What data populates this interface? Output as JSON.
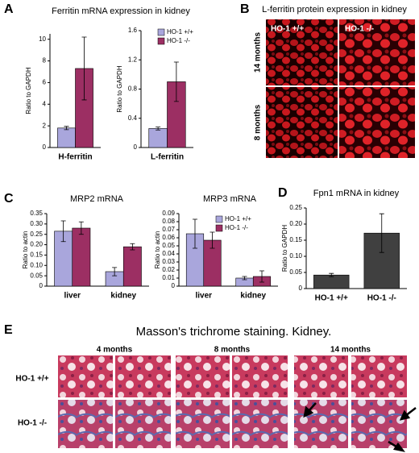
{
  "panel_labels": [
    "A",
    "B",
    "C",
    "D",
    "E"
  ],
  "chart_data": [
    {
      "type": "bar",
      "title": "Ferritin mRNA expression in kidney",
      "ylabel": "Ratio to GAPDH",
      "categories": [
        "H-ferritin"
      ],
      "ylim": [
        0,
        10.5
      ],
      "yticks": [
        0,
        2,
        4,
        6,
        8,
        10
      ],
      "series": [
        {
          "color": "#a9a6dc",
          "values": [
            1.8
          ],
          "errors": [
            0.15
          ]
        },
        {
          "color": "#9c2f63",
          "values": [
            7.3
          ],
          "errors": [
            2.9
          ]
        }
      ]
    },
    {
      "type": "bar",
      "ylabel": "Ratio to GAPDH",
      "categories": [
        "L-ferritin"
      ],
      "ylim": [
        0,
        1.6
      ],
      "yticks": [
        0,
        0.4,
        0.8,
        1.2,
        1.6
      ],
      "series": [
        {
          "name": "HO-1 +/+",
          "color": "#a9a6dc",
          "values": [
            0.26
          ],
          "errors": [
            0.02
          ]
        },
        {
          "name": "HO-1 -/-",
          "color": "#9c2f63",
          "values": [
            0.9
          ],
          "errors": [
            0.27
          ]
        }
      ]
    },
    {
      "type": "bar",
      "title": "MRP2 mRNA",
      "ylabel": "Ratio to actin",
      "categories": [
        "liver",
        "kidney"
      ],
      "ylim": [
        0,
        0.35
      ],
      "yticks": [
        0,
        0.05,
        {
          "value": 0.1,
          "label": "0.10"
        },
        0.15,
        {
          "value": 0.2,
          "label": "0.20"
        },
        0.25,
        {
          "value": 0.3,
          "label": "0.30"
        },
        0.35
      ],
      "series": [
        {
          "color": "#a9a6dc",
          "values": [
            0.265,
            0.07
          ],
          "errors": [
            0.05,
            0.02
          ]
        },
        {
          "color": "#9c2f63",
          "values": [
            0.28,
            0.19
          ],
          "errors": [
            0.03,
            0.015
          ]
        }
      ]
    },
    {
      "type": "bar",
      "title": "MRP3 mRNA",
      "ylabel": "Ratio to actin",
      "categories": [
        "liver",
        "kidney"
      ],
      "ylim": [
        0,
        0.09
      ],
      "yticks": [
        0,
        0.01,
        0.02,
        0.03,
        0.04,
        0.05,
        0.06,
        0.07,
        0.08,
        0.09
      ],
      "series": [
        {
          "name": "HO-1 +/+",
          "color": "#a9a6dc",
          "values": [
            0.065,
            0.01
          ],
          "errors": [
            0.018,
            0.002
          ]
        },
        {
          "name": "HO-1 -/-",
          "color": "#9c2f63",
          "values": [
            0.057,
            0.012
          ],
          "errors": [
            0.01,
            0.007
          ]
        }
      ]
    },
    {
      "type": "bar",
      "title": "Fpn1 mRNA in kidney",
      "ylabel": "Ratio to GAPDH",
      "categories": [
        "HO-1 +/+",
        "HO-1 -/-"
      ],
      "ylim": [
        0,
        0.25
      ],
      "yticks": [
        0,
        0.05,
        {
          "value": 0.1,
          "label": "0.10"
        },
        0.15,
        {
          "value": 0.2,
          "label": "0.20"
        },
        {
          "value": 0.25,
          "label": "0.25"
        }
      ],
      "series": [
        {
          "color": "#404040",
          "values": [
            0.042,
            0.172
          ],
          "errors": [
            0.005,
            0.06
          ]
        }
      ]
    }
  ],
  "panel_b": {
    "title": "L-ferritin protein expression in kidney",
    "columns": [
      "HO-1 +/+",
      "HO-1 -/-"
    ],
    "rows": [
      "14 months",
      "8 months"
    ]
  },
  "panel_e": {
    "title": "Masson's trichrome staining. Kidney.",
    "columns": [
      "4 months",
      "8 months",
      "14 months"
    ],
    "rows": [
      "HO-1 +/+",
      "HO-1 -/-"
    ]
  }
}
